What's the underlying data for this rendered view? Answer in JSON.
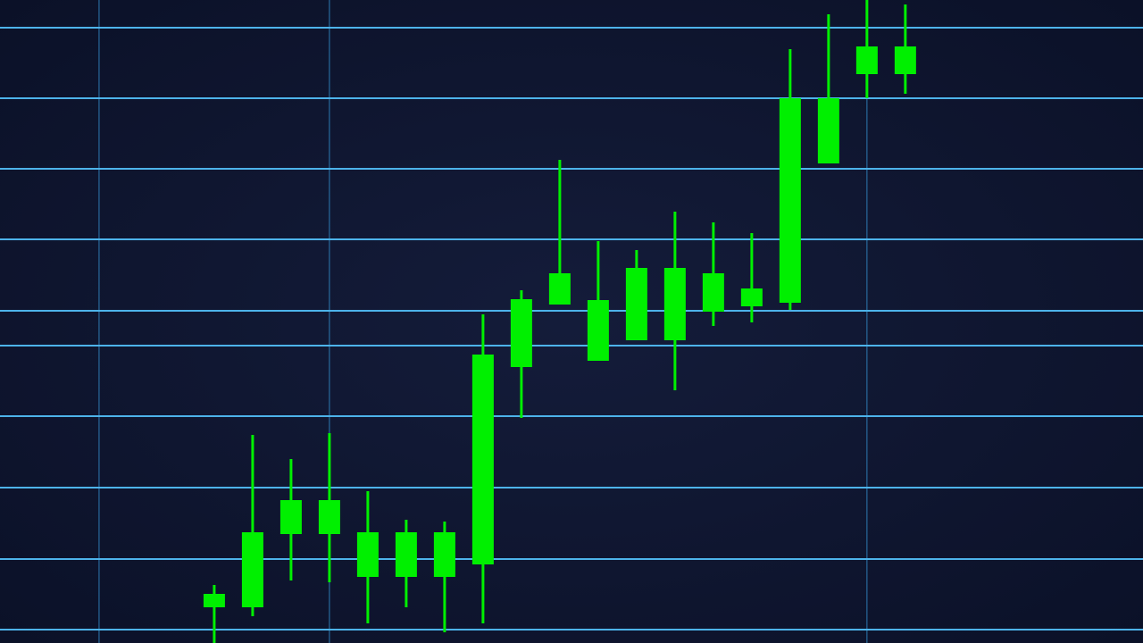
{
  "chart_data": {
    "type": "candlestick",
    "x": [
      0,
      1,
      2,
      3,
      4,
      5,
      6,
      7,
      8,
      9,
      10,
      11,
      12,
      13,
      14,
      15,
      16,
      17,
      18
    ],
    "open": [
      40,
      40,
      122,
      122,
      74,
      74,
      74,
      88,
      309,
      379,
      316,
      339,
      339,
      371,
      377,
      381,
      537,
      637,
      637
    ],
    "high": [
      65,
      233,
      206,
      235,
      170,
      138,
      136,
      368,
      395,
      541,
      450,
      440,
      483,
      471,
      459,
      665,
      704,
      720,
      715
    ],
    "low": [
      0,
      30,
      70,
      68,
      22,
      40,
      12,
      22,
      252,
      379,
      316,
      339,
      283,
      355,
      359,
      373,
      537,
      610,
      615
    ],
    "close": [
      55,
      124,
      160,
      160,
      124,
      124,
      124,
      323,
      385,
      414,
      384,
      420,
      420,
      414,
      397,
      610,
      610,
      668,
      668
    ],
    "color": "#00f000",
    "xlim": [
      -5.58,
      24.19
    ],
    "xticks": [
      -3,
      3,
      17
    ],
    "ylim": [
      0,
      720
    ],
    "yticks": [
      15,
      94,
      174,
      254,
      333,
      372,
      452,
      531,
      610,
      689
    ],
    "grid": true
  }
}
